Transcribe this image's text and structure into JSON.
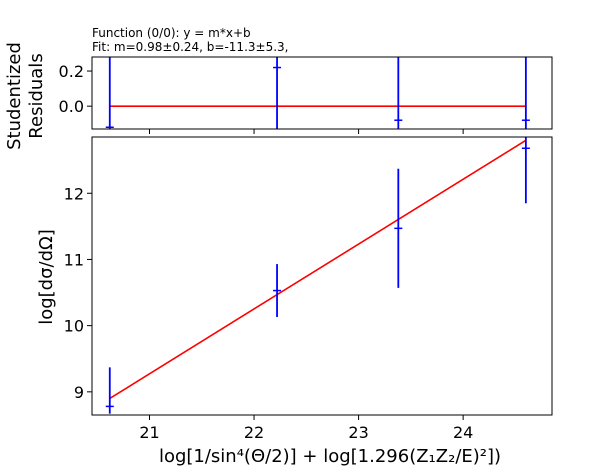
{
  "header": {
    "function_line": "Function (0/0): y = m*x+b",
    "fit_line": "Fit: m=0.98±0.24, b=-11.3±5.3,"
  },
  "colors": {
    "data": "#0000ff",
    "fit": "#ff0000",
    "axes": "#000000"
  },
  "chart_data": [
    {
      "panel": "residuals",
      "type": "scatter",
      "ylabel": "Studentized Residuals",
      "ylabel_lines": [
        "Studentized",
        "Residuals"
      ],
      "xlim": [
        20.45,
        24.85
      ],
      "ylim": [
        -0.13,
        0.28
      ],
      "yticks": [
        0.0,
        0.2
      ],
      "ytick_labels": [
        "0.0",
        "0.2"
      ],
      "xticks": [
        21,
        22,
        23,
        24
      ],
      "xtick_labels_shown": false,
      "points": [
        {
          "x": 20.62,
          "y": -0.12,
          "yerr_low": -0.13,
          "yerr_high": 0.28
        },
        {
          "x": 22.22,
          "y": 0.22,
          "yerr_low": -0.13,
          "yerr_high": 0.28
        },
        {
          "x": 23.38,
          "y": -0.08,
          "yerr_low": -0.13,
          "yerr_high": 0.28
        },
        {
          "x": 24.6,
          "y": -0.08,
          "yerr_low": -0.13,
          "yerr_high": 0.28
        }
      ],
      "fit_line": {
        "x": [
          20.62,
          24.6
        ],
        "y": [
          0.0,
          0.0
        ]
      }
    },
    {
      "panel": "main",
      "type": "scatter",
      "xlabel": "log[1/sin⁴(Θ/2)] + log[1.296(Z₁Z₂/E)²])",
      "ylabel": "log[dσ/dΩ]",
      "xlim": [
        20.45,
        24.85
      ],
      "ylim": [
        8.65,
        12.85
      ],
      "xticks": [
        21,
        22,
        23,
        24
      ],
      "xtick_labels": [
        "21",
        "22",
        "23",
        "24"
      ],
      "yticks": [
        9,
        10,
        11,
        12
      ],
      "ytick_labels": [
        "9",
        "10",
        "11",
        "12"
      ],
      "points": [
        {
          "x": 20.62,
          "y": 8.78,
          "yerr_low": 8.67,
          "yerr_high": 9.37
        },
        {
          "x": 22.22,
          "y": 10.53,
          "yerr_low": 10.13,
          "yerr_high": 10.93
        },
        {
          "x": 23.38,
          "y": 11.47,
          "yerr_low": 10.57,
          "yerr_high": 12.37
        },
        {
          "x": 24.6,
          "y": 12.68,
          "yerr_low": 11.85,
          "yerr_high": 12.85
        }
      ],
      "fit_line": {
        "x": [
          20.62,
          24.6
        ],
        "y": [
          8.9,
          12.8
        ]
      }
    }
  ]
}
